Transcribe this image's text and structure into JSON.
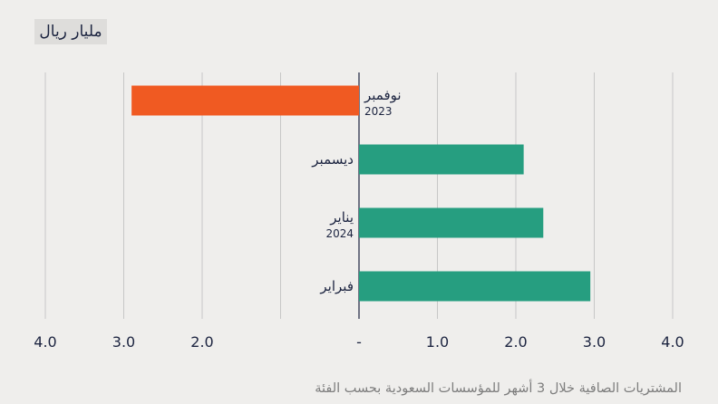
{
  "unit_label": "مليار ريال",
  "footer_note": "المشتريات الصافية خلال 3 أشهر للمؤسسات السعودية بحسب الفئة",
  "colors": {
    "negative": "#f05a22",
    "positive": "#269e80",
    "grid": "#c7c7c7",
    "text": "#1c2440"
  },
  "chart_data": {
    "type": "bar",
    "orientation": "horizontal",
    "categories": [
      {
        "label": "نوفمبر",
        "sublabel": "2023"
      },
      {
        "label": "ديسمبر",
        "sublabel": ""
      },
      {
        "label": "يناير",
        "sublabel": "2024"
      },
      {
        "label": "فبراير",
        "sublabel": ""
      }
    ],
    "values": [
      -2.9,
      2.1,
      2.35,
      2.95
    ],
    "xlim": [
      -4,
      4
    ],
    "xticks": [
      -4,
      -3,
      -2,
      -1,
      0,
      1,
      2,
      3,
      4
    ],
    "xtick_labels": [
      "4.0",
      "3.0",
      "2.0",
      "",
      "-",
      "1.0",
      "2.0",
      "3.0",
      "4.0"
    ],
    "grid": true,
    "title": "",
    "xlabel": "",
    "ylabel": ""
  }
}
